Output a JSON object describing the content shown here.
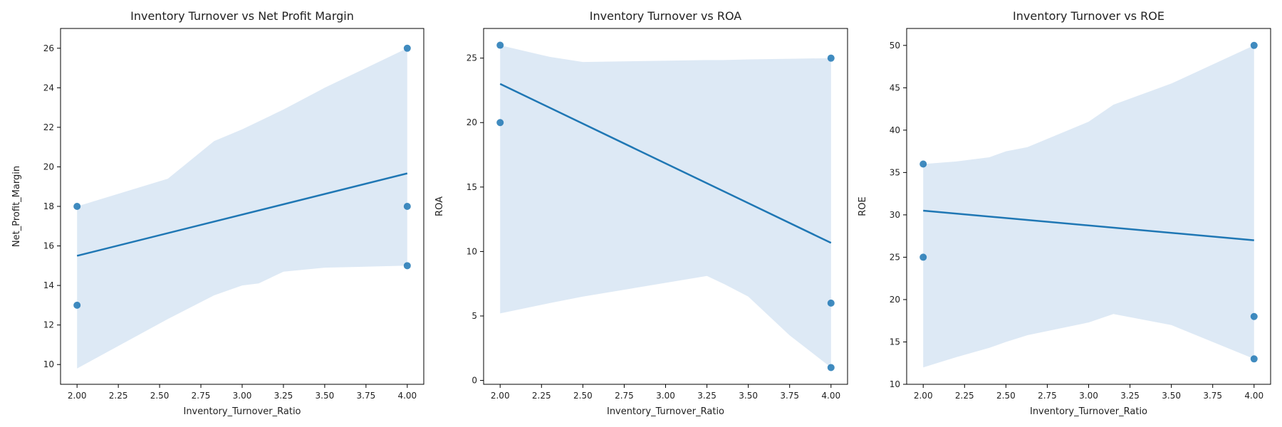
{
  "chart_data": [
    {
      "type": "scatter",
      "title": "Inventory Turnover vs Net Profit Margin",
      "xlabel": "Inventory_Turnover_Ratio",
      "ylabel": "Net_Profit_Margin",
      "xlim": [
        1.9,
        4.1
      ],
      "ylim": [
        9,
        27
      ],
      "xticks": [
        "2.00",
        "2.25",
        "2.50",
        "2.75",
        "3.00",
        "3.25",
        "3.50",
        "3.75",
        "4.00"
      ],
      "yticks": [
        "10",
        "12",
        "14",
        "16",
        "18",
        "20",
        "22",
        "24",
        "26"
      ],
      "points": [
        {
          "x": 2.0,
          "y": 18
        },
        {
          "x": 2.0,
          "y": 13
        },
        {
          "x": 4.0,
          "y": 26
        },
        {
          "x": 4.0,
          "y": 18
        },
        {
          "x": 4.0,
          "y": 15
        }
      ],
      "regression": {
        "x": [
          2.0,
          4.0
        ],
        "y": [
          15.5,
          19.67
        ]
      },
      "ci_band": {
        "x": [
          2.0,
          2.55,
          2.83,
          3.0,
          3.1,
          3.25,
          3.5,
          4.0
        ],
        "upper": [
          18.0,
          19.4,
          21.3,
          21.9,
          22.3,
          22.9,
          24.0,
          26.0
        ],
        "lower": [
          9.8,
          12.3,
          13.5,
          14.0,
          14.1,
          14.7,
          14.9,
          15.0
        ]
      },
      "grid": false,
      "colors": {
        "points": "#1f77b4",
        "line": "#1f77b4",
        "band": "#c6dbef"
      }
    },
    {
      "type": "scatter",
      "title": "Inventory Turnover vs ROA",
      "xlabel": "Inventory_Turnover_Ratio",
      "ylabel": "ROA",
      "xlim": [
        1.9,
        4.1
      ],
      "ylim": [
        -0.3,
        27.3
      ],
      "xticks": [
        "2.00",
        "2.25",
        "2.50",
        "2.75",
        "3.00",
        "3.25",
        "3.50",
        "3.75",
        "4.00"
      ],
      "yticks": [
        "0",
        "5",
        "10",
        "15",
        "20",
        "25"
      ],
      "points": [
        {
          "x": 2.0,
          "y": 26
        },
        {
          "x": 2.0,
          "y": 20
        },
        {
          "x": 4.0,
          "y": 25
        },
        {
          "x": 4.0,
          "y": 6
        },
        {
          "x": 4.0,
          "y": 1
        }
      ],
      "regression": {
        "x": [
          2.0,
          4.0
        ],
        "y": [
          23.0,
          10.67
        ]
      },
      "ci_band": {
        "x": [
          2.0,
          2.3,
          2.5,
          3.25,
          3.35,
          3.5,
          3.75,
          4.0
        ],
        "upper": [
          26.0,
          25.1,
          24.7,
          24.85,
          24.85,
          24.9,
          24.95,
          25.0
        ],
        "lower": [
          5.2,
          6.0,
          6.5,
          8.1,
          7.5,
          6.5,
          3.5,
          1.0
        ]
      },
      "grid": false,
      "colors": {
        "points": "#1f77b4",
        "line": "#1f77b4",
        "band": "#c6dbef"
      }
    },
    {
      "type": "scatter",
      "title": "Inventory Turnover vs ROE",
      "xlabel": "Inventory_Turnover_Ratio",
      "ylabel": "ROE",
      "xlim": [
        1.9,
        4.1
      ],
      "ylim": [
        10,
        52
      ],
      "xticks": [
        "2.00",
        "2.25",
        "2.50",
        "2.75",
        "3.00",
        "3.25",
        "3.50",
        "3.75",
        "4.00"
      ],
      "yticks": [
        "10",
        "15",
        "20",
        "25",
        "30",
        "35",
        "40",
        "45",
        "50"
      ],
      "points": [
        {
          "x": 2.0,
          "y": 36
        },
        {
          "x": 2.0,
          "y": 25
        },
        {
          "x": 4.0,
          "y": 50
        },
        {
          "x": 4.0,
          "y": 18
        },
        {
          "x": 4.0,
          "y": 13
        }
      ],
      "regression": {
        "x": [
          2.0,
          4.0
        ],
        "y": [
          30.5,
          27.0
        ]
      },
      "ci_band": {
        "x": [
          2.0,
          2.2,
          2.4,
          2.5,
          2.63,
          3.0,
          3.15,
          3.5,
          4.0
        ],
        "upper": [
          36.0,
          36.3,
          36.8,
          37.5,
          38.0,
          41.0,
          43.0,
          45.5,
          50.0
        ],
        "lower": [
          12.0,
          13.2,
          14.3,
          15.0,
          15.8,
          17.3,
          18.3,
          17.0,
          13.0
        ]
      },
      "grid": false,
      "colors": {
        "points": "#1f77b4",
        "line": "#1f77b4",
        "band": "#c6dbef"
      }
    }
  ]
}
